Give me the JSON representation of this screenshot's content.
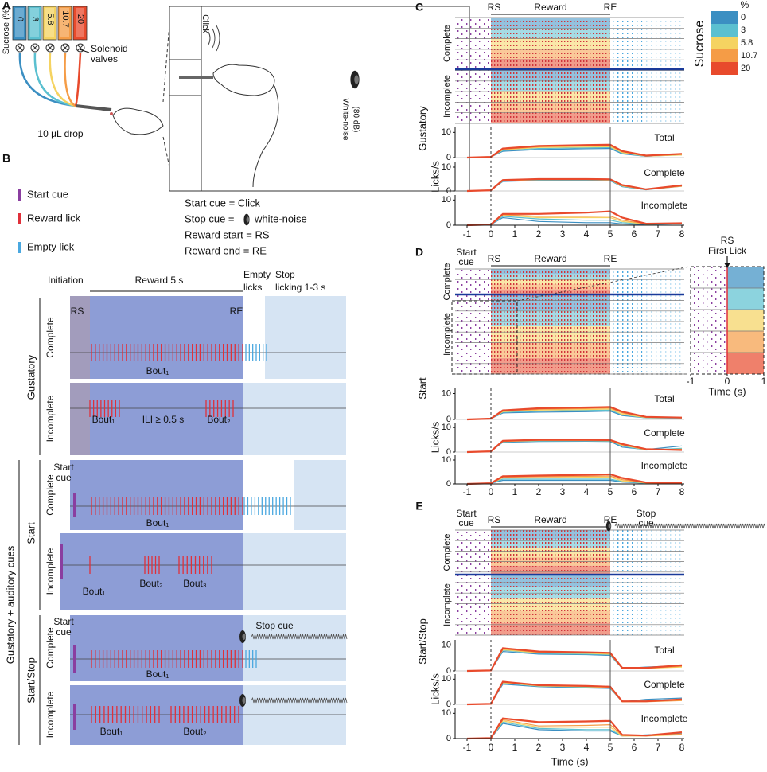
{
  "colors": [
    "#3b8fc2",
    "#5bc0d0",
    "#f5d361",
    "#f59c46",
    "#e84a2c"
  ],
  "panel_a": {
    "label": "A",
    "sucrose": "Sucrose (%)",
    "vials": [
      "0",
      "3",
      "5.8",
      "10.7",
      "20"
    ],
    "valves": [
      "Solenoid",
      "valves"
    ],
    "drop": "10 µL drop",
    "click": "Click",
    "noise": [
      "White-noise",
      "(80 dB)"
    ]
  },
  "panel_b": {
    "label": "B",
    "legend": [
      "Start cue",
      "Reward lick",
      "Empty lick"
    ],
    "definitions": [
      "Start cue = Click",
      "Stop cue =",
      "white-noise",
      "Reward start = RS",
      "Reward end  = RE"
    ],
    "header": {
      "initiation": "Initiation",
      "reward": "Reward 5 s",
      "empty": [
        "Empty",
        "licks"
      ],
      "stop": [
        "Stop",
        "licking 1-3 s"
      ]
    },
    "groups": {
      "gustatory": "Gustatory",
      "cues": "Gustatory + auditory cues",
      "start": "Start",
      "startstop": "Start/Stop",
      "complete": "Complete",
      "incomplete": "Incomplete"
    },
    "rows": [
      [
        "RS",
        "RE",
        "Bout₁"
      ],
      [
        "Bout₁",
        "ILI ≥ 0.5 s",
        "Bout₂"
      ],
      [
        "Start",
        "cue",
        "Bout₁"
      ],
      [
        "Bout₁",
        "Bout₂",
        "Bout₃"
      ],
      [
        "Start",
        "cue",
        "Stop cue",
        "Bout₁"
      ],
      [
        "Bout₁",
        "Bout₂"
      ]
    ]
  },
  "chart_data": [
    {
      "type": "line",
      "label": "C",
      "name": "Gustatory",
      "ylabel": "Licks/s",
      "raster": {
        "labels": [
          "RS",
          "Reward",
          "RE"
        ],
        "groups": [
          "Complete",
          "Incomplete"
        ]
      },
      "legend": {
        "title": "%",
        "axis": "Sucrose",
        "names": [
          "0",
          "3",
          "5.8",
          "10.7",
          "20"
        ]
      },
      "x": [
        -1,
        0,
        0.5,
        2,
        4,
        5,
        5.5,
        6.5,
        8
      ],
      "xlim": [
        -1.5,
        8.1
      ],
      "xticks": [
        -1,
        0,
        1,
        2,
        3,
        4,
        5,
        6,
        7,
        8
      ],
      "ylim": [
        0,
        12
      ],
      "yticks": [
        0,
        10
      ],
      "subplots": [
        {
          "name": "Total",
          "series": [
            {
              "values": [
                0,
                0.3,
                2.5,
                3.2,
                3.5,
                3.6,
                1.5,
                0.5,
                1.2
              ]
            },
            {
              "values": [
                0,
                0.3,
                2.8,
                3.6,
                3.9,
                4.0,
                1.8,
                0.6,
                1.0
              ]
            },
            {
              "values": [
                0,
                0.3,
                3.1,
                4.0,
                4.2,
                4.3,
                2.0,
                0.6,
                1.0
              ]
            },
            {
              "values": [
                0,
                0.3,
                3.3,
                4.3,
                4.6,
                4.7,
                2.3,
                0.7,
                1.3
              ]
            },
            {
              "values": [
                0,
                0.3,
                3.6,
                4.6,
                5.0,
                5.1,
                2.6,
                0.8,
                1.5
              ]
            }
          ]
        },
        {
          "name": "Complete",
          "series": [
            {
              "values": [
                0,
                0.3,
                4.0,
                4.4,
                4.4,
                4.3,
                1.8,
                0.5,
                2.5
              ]
            },
            {
              "values": [
                0,
                0.3,
                4.2,
                4.6,
                4.7,
                4.5,
                2.0,
                0.5,
                2.0
              ]
            },
            {
              "values": [
                0,
                0.3,
                4.3,
                4.8,
                4.8,
                4.6,
                2.1,
                0.6,
                2.2
              ]
            },
            {
              "values": [
                0,
                0.3,
                4.4,
                4.9,
                4.9,
                4.7,
                2.3,
                0.6,
                2.0
              ]
            },
            {
              "values": [
                0,
                0.3,
                4.6,
                5.0,
                5.0,
                4.9,
                2.5,
                0.7,
                2.4
              ]
            }
          ]
        },
        {
          "name": "Incomplete",
          "series": [
            {
              "values": [
                0,
                0.3,
                3.0,
                1.5,
                1.0,
                1.0,
                0.5,
                0.3,
                0.6
              ]
            },
            {
              "values": [
                0,
                0.3,
                3.5,
                2.5,
                2.0,
                2.0,
                1.0,
                0.4,
                0.6
              ]
            },
            {
              "values": [
                0,
                0.3,
                4.0,
                3.0,
                3.0,
                3.0,
                1.5,
                0.4,
                0.6
              ]
            },
            {
              "values": [
                0,
                0.3,
                4.2,
                3.5,
                3.5,
                3.6,
                2.0,
                0.5,
                0.7
              ]
            },
            {
              "values": [
                0,
                0.3,
                4.5,
                4.5,
                5.0,
                5.5,
                3.0,
                0.6,
                0.8
              ]
            }
          ]
        }
      ]
    },
    {
      "type": "line",
      "label": "D",
      "name": "Start",
      "ylabel": "Licks/s",
      "cue": [
        "Start",
        "cue"
      ],
      "raster": {
        "labels": [
          "RS",
          "Reward",
          "RE"
        ],
        "groups": [
          "Complete",
          "Incomplete"
        ]
      },
      "inset": {
        "label": [
          "RS",
          "First Lick"
        ],
        "xlim": [
          -1,
          1
        ],
        "xticks": [
          -1,
          0,
          1
        ],
        "xlabel": "Time (s)"
      },
      "x": [
        -1,
        0,
        0.5,
        2,
        4,
        5,
        5.5,
        6.5,
        8
      ],
      "xlim": [
        -1.5,
        8.1
      ],
      "xticks": [
        -1,
        0,
        1,
        2,
        3,
        4,
        5,
        6,
        7,
        8
      ],
      "ylim": [
        0,
        12
      ],
      "yticks": [
        0,
        10
      ],
      "subplots": [
        {
          "name": "Total",
          "series": [
            {
              "values": [
                0,
                0.3,
                2.5,
                2.8,
                3.0,
                3.2,
                1.5,
                0.6,
                0.5
              ]
            },
            {
              "values": [
                0,
                0.3,
                2.8,
                3.2,
                3.5,
                3.6,
                1.8,
                0.6,
                0.5
              ]
            },
            {
              "values": [
                0,
                0.3,
                3.0,
                3.6,
                3.8,
                4.0,
                2.0,
                0.7,
                0.6
              ]
            },
            {
              "values": [
                0,
                0.3,
                3.2,
                3.9,
                4.2,
                4.4,
                2.5,
                0.8,
                0.6
              ]
            },
            {
              "values": [
                0,
                0.3,
                3.5,
                4.3,
                4.6,
                4.8,
                3.0,
                1.0,
                0.7
              ]
            }
          ]
        },
        {
          "name": "Complete",
          "series": [
            {
              "values": [
                0,
                0.3,
                4.0,
                4.3,
                4.4,
                4.3,
                2.0,
                1.0,
                2.5
              ]
            },
            {
              "values": [
                0,
                0.3,
                4.2,
                4.5,
                4.6,
                4.5,
                2.5,
                0.8,
                1.5
              ]
            },
            {
              "values": [
                0,
                0.3,
                4.3,
                4.7,
                4.7,
                4.6,
                2.8,
                0.9,
                1.2
              ]
            },
            {
              "values": [
                0,
                0.3,
                4.4,
                4.8,
                4.8,
                4.7,
                3.0,
                1.0,
                1.0
              ]
            },
            {
              "values": [
                0,
                0.3,
                4.6,
                5.0,
                5.0,
                4.9,
                3.3,
                1.2,
                0.8
              ]
            }
          ]
        },
        {
          "name": "Incomplete",
          "series": [
            {
              "values": [
                0,
                0.3,
                1.5,
                1.5,
                1.5,
                1.5,
                0.8,
                0.3,
                0.3
              ]
            },
            {
              "values": [
                0,
                0.3,
                2.0,
                2.0,
                2.0,
                2.0,
                1.0,
                0.3,
                0.3
              ]
            },
            {
              "values": [
                0,
                0.3,
                2.5,
                2.5,
                2.8,
                2.8,
                1.3,
                0.4,
                0.3
              ]
            },
            {
              "values": [
                0,
                0.3,
                2.8,
                3.0,
                3.2,
                3.3,
                1.8,
                0.5,
                0.4
              ]
            },
            {
              "values": [
                0,
                0.3,
                3.2,
                3.5,
                3.8,
                4.0,
                2.5,
                0.6,
                0.4
              ]
            }
          ]
        }
      ]
    },
    {
      "type": "line",
      "label": "E",
      "name": "Start/Stop",
      "ylabel": "Licks/s",
      "cue": [
        "Start",
        "cue"
      ],
      "stop": [
        "Stop",
        "cue"
      ],
      "xlabel": "Time (s)",
      "raster": {
        "labels": [
          "RS",
          "Reward",
          "RE"
        ],
        "groups": [
          "Complete",
          "Incomplete"
        ]
      },
      "x": [
        -1,
        0,
        0.5,
        2,
        4,
        5,
        5.5,
        6.5,
        8
      ],
      "xlim": [
        -1.5,
        8.1
      ],
      "xticks": [
        -1,
        0,
        1,
        2,
        3,
        4,
        5,
        6,
        7,
        8
      ],
      "ylim": [
        0,
        12
      ],
      "yticks": [
        0,
        10
      ],
      "subplots": [
        {
          "name": "Total",
          "series": [
            {
              "values": [
                0,
                0.2,
                7.5,
                6.5,
                6.3,
                6.0,
                1.0,
                1.5,
                2.0
              ]
            },
            {
              "values": [
                0,
                0.2,
                8.0,
                6.8,
                6.5,
                6.3,
                1.0,
                1.2,
                1.8
              ]
            },
            {
              "values": [
                0,
                0.2,
                8.2,
                7.0,
                6.8,
                6.5,
                1.0,
                1.0,
                1.5
              ]
            },
            {
              "values": [
                0,
                0.2,
                8.5,
                7.2,
                7.0,
                6.8,
                1.0,
                1.0,
                1.8
              ]
            },
            {
              "values": [
                0,
                0.2,
                8.8,
                7.5,
                7.2,
                7.0,
                1.2,
                1.2,
                2.2
              ]
            }
          ]
        },
        {
          "name": "Complete",
          "series": [
            {
              "values": [
                0,
                0.2,
                8.0,
                7.0,
                6.5,
                6.3,
                1.0,
                2.0,
                2.5
              ]
            },
            {
              "values": [
                0,
                0.2,
                8.5,
                7.2,
                6.8,
                6.5,
                1.0,
                1.5,
                2.0
              ]
            },
            {
              "values": [
                0,
                0.2,
                8.6,
                7.3,
                7.0,
                6.6,
                1.0,
                1.2,
                1.8
              ]
            },
            {
              "values": [
                0,
                0.2,
                8.8,
                7.5,
                7.2,
                6.8,
                1.0,
                1.0,
                1.5
              ]
            },
            {
              "values": [
                0,
                0.2,
                9.0,
                7.6,
                7.3,
                7.0,
                1.2,
                1.2,
                2.0
              ]
            }
          ]
        },
        {
          "name": "Incomplete",
          "series": [
            {
              "values": [
                0,
                0.2,
                6.0,
                3.5,
                3.0,
                3.0,
                1.0,
                1.5,
                2.0
              ]
            },
            {
              "values": [
                0,
                0.2,
                6.5,
                4.0,
                3.5,
                3.5,
                1.0,
                1.2,
                1.8
              ]
            },
            {
              "values": [
                0,
                0.2,
                7.0,
                4.5,
                4.5,
                4.5,
                1.0,
                1.0,
                1.5
              ]
            },
            {
              "values": [
                0,
                0.2,
                7.5,
                5.0,
                5.2,
                5.5,
                1.2,
                1.0,
                1.8
              ]
            },
            {
              "values": [
                0,
                0.2,
                8.0,
                6.5,
                6.8,
                7.0,
                1.5,
                1.2,
                2.5
              ]
            }
          ]
        }
      ]
    }
  ]
}
